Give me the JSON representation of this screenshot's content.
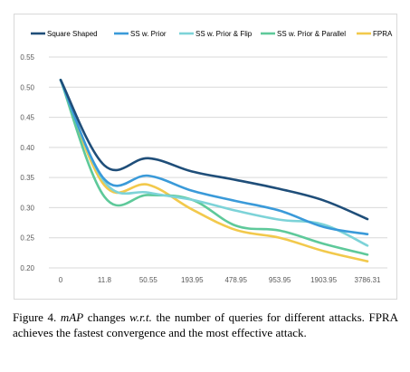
{
  "chart_data": {
    "type": "line",
    "title": "",
    "xlabel": "",
    "ylabel": "",
    "categories": [
      "0",
      "11.8",
      "50.55",
      "193.95",
      "478.95",
      "953.95",
      "1903.95",
      "3786.31"
    ],
    "ylim": [
      0.2,
      0.55
    ],
    "yticks": [
      "0.20",
      "0.25",
      "0.30",
      "0.35",
      "0.40",
      "0.45",
      "0.50",
      "0.55"
    ],
    "grid": true,
    "legend_position": "top",
    "series": [
      {
        "name": "Square Shaped",
        "color": "#1f4e79",
        "values": [
          0.512,
          0.37,
          0.382,
          0.36,
          0.346,
          0.331,
          0.312,
          0.281
        ]
      },
      {
        "name": "SS w. Prior",
        "color": "#3a9ad9",
        "values": [
          0.512,
          0.347,
          0.353,
          0.328,
          0.311,
          0.295,
          0.268,
          0.256
        ]
      },
      {
        "name": "SS w. Prior & Flip",
        "color": "#7dd3d8",
        "values": [
          0.512,
          0.343,
          0.325,
          0.313,
          0.295,
          0.28,
          0.272,
          0.237
        ]
      },
      {
        "name": "SS w. Prior & Parallel",
        "color": "#5ec99a",
        "values": [
          0.512,
          0.318,
          0.321,
          0.313,
          0.27,
          0.262,
          0.24,
          0.222
        ]
      },
      {
        "name": "FPRA",
        "color": "#f2c94c",
        "values": [
          0.512,
          0.337,
          0.338,
          0.297,
          0.263,
          0.25,
          0.228,
          0.211
        ]
      }
    ]
  },
  "caption": {
    "line1": "Figure 4. ",
    "math1": "mAP",
    "part2": " changes ",
    "math2": "w.r.t.",
    "part3": " the number of queries for different attacks. FPRA achieves the fastest convergence and the most effective attack."
  }
}
